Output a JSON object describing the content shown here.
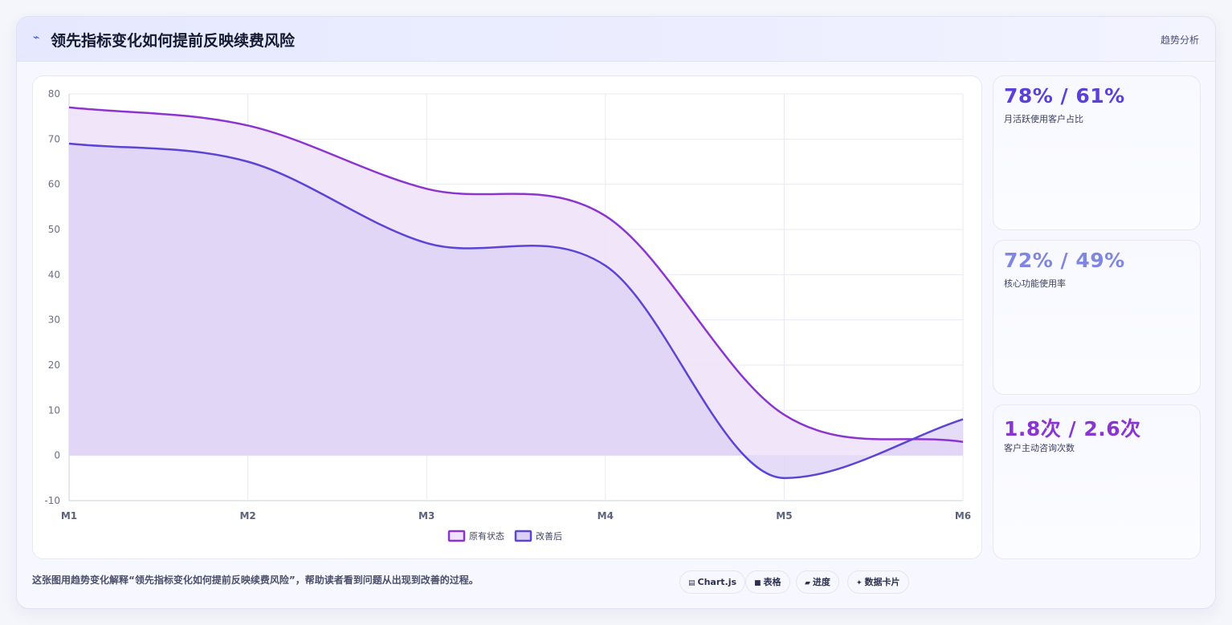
{
  "header": {
    "title": "领先指标变化如何提前反映续费风险",
    "tag": "趋势分析"
  },
  "chart_data": {
    "type": "area",
    "categories": [
      "M1",
      "M2",
      "M3",
      "M4",
      "M5",
      "M6"
    ],
    "series": [
      {
        "name": "原有状态",
        "values": [
          77,
          73,
          59,
          53,
          9,
          3
        ],
        "color": "#8b35d0",
        "fill": "#efe2fa"
      },
      {
        "name": "改善后",
        "values": [
          69,
          65,
          47,
          42,
          -5,
          8
        ],
        "color": "#5a45d4",
        "fill": "#dcd0f6"
      }
    ],
    "ylim": [
      -10,
      80
    ],
    "yticks": [
      -10,
      0,
      10,
      20,
      30,
      40,
      50,
      60,
      70,
      80
    ],
    "grid": true,
    "legend": "bottom"
  },
  "metrics": [
    {
      "value": "78% / 61%",
      "label": "月活跃使用客户占比",
      "color": "#5a3fd8"
    },
    {
      "value": "72% / 49%",
      "label": "核心功能使用率",
      "color": "#7f86e0"
    },
    {
      "value": "1.8次 / 2.6次",
      "label": "客户主动咨询次数",
      "color": "#8a34d2"
    }
  ],
  "footer": {
    "description": "这张图用趋势变化解释“领先指标变化如何提前反映续费风险”，帮助读者看到问题从出现到改善的过程。",
    "chips": [
      {
        "icon": "chart-icon",
        "glyph": "▤",
        "label": "Chart.js"
      },
      {
        "icon": "table-icon",
        "glyph": "■",
        "label": "表格"
      },
      {
        "icon": "progress-icon",
        "glyph": "▰",
        "label": "进度"
      },
      {
        "icon": "card-icon",
        "glyph": "✦",
        "label": "数据卡片"
      }
    ]
  }
}
